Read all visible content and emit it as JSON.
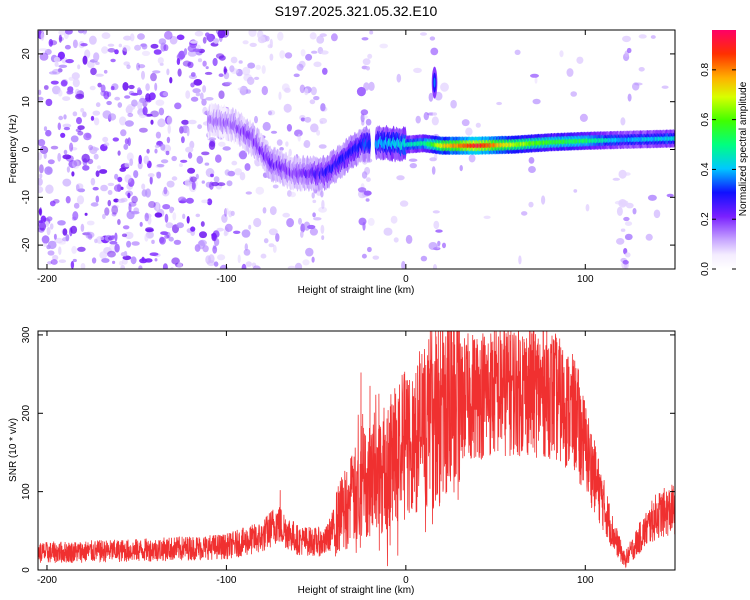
{
  "title": "S197.2025.321.05.32.E10",
  "chart_data": [
    {
      "type": "heatmap",
      "name": "spectrogram",
      "xlabel": "Height of straight line (km)",
      "ylabel": "Frequency (Hz)",
      "xlim": [
        -205,
        150
      ],
      "ylim": [
        -25,
        25
      ],
      "xticks": [
        -200,
        -100,
        0,
        100
      ],
      "yticks": [
        -20,
        -10,
        0,
        10,
        20
      ],
      "colorbar": {
        "label": "Normalized spectral amplitude",
        "range": [
          0,
          0.96
        ],
        "ticks": [
          0.0,
          0.2,
          0.4,
          0.6,
          0.8
        ],
        "tick_labels": [
          "0.0",
          "0.2",
          "0.4",
          "0.6",
          "0.8"
        ]
      },
      "ridge": [
        {
          "x": -105,
          "y": 6,
          "amp": 0.15
        },
        {
          "x": -95,
          "y": 5,
          "amp": 0.17
        },
        {
          "x": -85,
          "y": 2,
          "amp": 0.2
        },
        {
          "x": -75,
          "y": -3,
          "amp": 0.22
        },
        {
          "x": -62,
          "y": -5,
          "amp": 0.2
        },
        {
          "x": -45,
          "y": -5,
          "amp": 0.28
        },
        {
          "x": -35,
          "y": -2,
          "amp": 0.3
        },
        {
          "x": -25,
          "y": 1,
          "amp": 0.32
        },
        {
          "x": -15,
          "y": 1.5,
          "amp": 0.4
        },
        {
          "x": 0,
          "y": 1,
          "amp": 0.45
        },
        {
          "x": 10,
          "y": 1.3,
          "amp": 0.5
        },
        {
          "x": 20,
          "y": 0.8,
          "amp": 0.75
        },
        {
          "x": 40,
          "y": 0.8,
          "amp": 0.95
        },
        {
          "x": 60,
          "y": 1,
          "amp": 0.7
        },
        {
          "x": 80,
          "y": 1.5,
          "amp": 0.6
        },
        {
          "x": 100,
          "y": 1.8,
          "amp": 0.55
        },
        {
          "x": 120,
          "y": 2,
          "amp": 0.4
        },
        {
          "x": 150,
          "y": 2.3,
          "amp": 0.45
        }
      ],
      "vertical_bands_km": [
        -22,
        16,
        122
      ]
    },
    {
      "type": "line",
      "name": "snr",
      "xlabel": "Height of straight line (km)",
      "ylabel": "SNR (10 * v/v)",
      "xlim": [
        -205,
        150
      ],
      "ylim": [
        0,
        305
      ],
      "xticks": [
        -200,
        -100,
        0,
        100
      ],
      "yticks": [
        0,
        100,
        200,
        300
      ],
      "color": "#f03030",
      "envelope": [
        {
          "x": -205,
          "y": 22
        },
        {
          "x": -150,
          "y": 25
        },
        {
          "x": -100,
          "y": 30
        },
        {
          "x": -80,
          "y": 42
        },
        {
          "x": -72,
          "y": 60
        },
        {
          "x": -60,
          "y": 38
        },
        {
          "x": -45,
          "y": 35
        },
        {
          "x": -35,
          "y": 75
        },
        {
          "x": -25,
          "y": 105
        },
        {
          "x": -15,
          "y": 125
        },
        {
          "x": 0,
          "y": 160
        },
        {
          "x": 10,
          "y": 185
        },
        {
          "x": 20,
          "y": 205
        },
        {
          "x": 40,
          "y": 225
        },
        {
          "x": 60,
          "y": 232
        },
        {
          "x": 80,
          "y": 228
        },
        {
          "x": 95,
          "y": 195
        },
        {
          "x": 105,
          "y": 120
        },
        {
          "x": 115,
          "y": 50
        },
        {
          "x": 122,
          "y": 12
        },
        {
          "x": 130,
          "y": 40
        },
        {
          "x": 140,
          "y": 70
        },
        {
          "x": 150,
          "y": 78
        }
      ],
      "spikes": [
        {
          "x": -70,
          "y": 102
        },
        {
          "x": -25,
          "y": 252
        },
        {
          "x": -20,
          "y": 235
        },
        {
          "x": -15,
          "y": 225
        },
        {
          "x": -7,
          "y": 210
        },
        {
          "x": 15,
          "y": 225
        },
        {
          "x": 58,
          "y": 300
        },
        {
          "x": 65,
          "y": 298
        },
        {
          "x": 72,
          "y": 292
        },
        {
          "x": 97,
          "y": 110
        }
      ]
    }
  ]
}
